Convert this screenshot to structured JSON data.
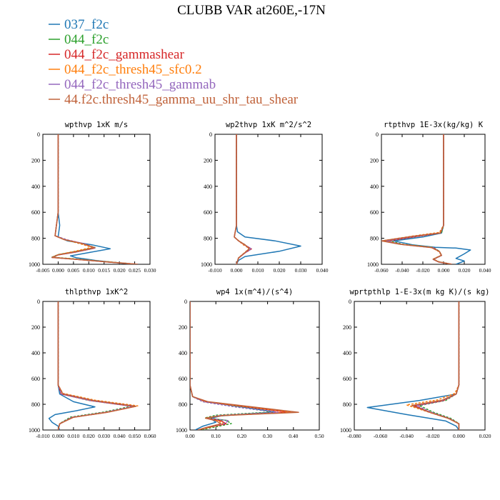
{
  "page": {
    "title": "CLUBB VAR at260E,-17N"
  },
  "legend": [
    {
      "label": "037_f2c",
      "color": "#1f77b4"
    },
    {
      "label": "044_f2c",
      "color": "#2ca02c"
    },
    {
      "label": "044_f2c_gammashear",
      "color": "#d62728"
    },
    {
      "label": "044_f2c_thresh45_sfc0.2",
      "color": "#ff7f0e"
    },
    {
      "label": "044_f2c_thresh45_gammab",
      "color": "#9467bd"
    },
    {
      "label": "44.f2c.thresh45_gamma_uu_shr_tau_shear",
      "color": "#c0623a"
    }
  ],
  "chart_data": [
    {
      "type": "line",
      "title": "wpthvp  1xK m/s",
      "xlim": [
        -0.005,
        0.03
      ],
      "ylim": [
        1000,
        0
      ],
      "xticks": [
        "-0.005",
        "0.000",
        "0.005",
        "0.010",
        "0.015",
        "0.020",
        "0.025",
        "0.030"
      ],
      "yticks": [
        "0",
        "200",
        "400",
        "600",
        "800",
        "1000"
      ],
      "series": [
        {
          "x": [
            0.0,
            0.0,
            0.0005,
            0.0,
            0.003,
            0.011,
            0.017,
            0.01,
            0.004,
            0.006,
            0.012,
            0.02,
            0.025
          ],
          "y": [
            0,
            600,
            700,
            790,
            820,
            850,
            880,
            910,
            935,
            950,
            970,
            990,
            1000
          ]
        },
        {
          "x": [
            0.0,
            0.0,
            -0.001,
            0.002,
            0.007,
            0.012,
            0.006,
            0.0,
            -0.002,
            0.006,
            0.016,
            0.026
          ],
          "y": [
            0,
            600,
            780,
            810,
            840,
            870,
            900,
            925,
            945,
            960,
            980,
            1000
          ]
        },
        {
          "x": [
            0.0,
            0.0,
            -0.001,
            0.002,
            0.008,
            0.012,
            0.006,
            0.0,
            -0.002,
            0.006,
            0.016,
            0.026
          ],
          "y": [
            0,
            600,
            780,
            810,
            840,
            875,
            905,
            928,
            948,
            962,
            982,
            1000
          ]
        },
        {
          "x": [
            0.0,
            0.0,
            -0.001,
            0.002,
            0.007,
            0.011,
            0.005,
            0.0,
            -0.002,
            0.006,
            0.016,
            0.026
          ],
          "y": [
            0,
            600,
            780,
            810,
            840,
            870,
            902,
            926,
            946,
            961,
            981,
            1000
          ]
        },
        {
          "x": [
            0.0,
            0.0,
            -0.001,
            0.003,
            0.009,
            0.012,
            0.006,
            0.0,
            -0.002,
            0.006,
            0.016,
            0.026
          ],
          "y": [
            0,
            600,
            780,
            812,
            845,
            875,
            905,
            928,
            948,
            962,
            982,
            1000
          ]
        },
        {
          "x": [
            0.0,
            0.0,
            -0.001,
            0.002,
            0.008,
            0.012,
            0.006,
            0.0,
            -0.002,
            0.006,
            0.016,
            0.026
          ],
          "y": [
            0,
            600,
            780,
            810,
            842,
            872,
            903,
            927,
            947,
            962,
            982,
            1000
          ]
        }
      ]
    },
    {
      "type": "line",
      "title": "wp2thvp  1xK m^2/s^2",
      "xlim": [
        -0.01,
        0.04
      ],
      "ylim": [
        1000,
        0
      ],
      "xticks": [
        "-0.010",
        "0.000",
        "0.010",
        "0.020",
        "0.030",
        "0.040"
      ],
      "yticks": [
        "0",
        "200",
        "400",
        "600",
        "800",
        "1000"
      ],
      "series": [
        {
          "x": [
            0.0,
            0.0,
            0.0005,
            0.004,
            0.018,
            0.03,
            0.02,
            0.004,
            0.001,
            0.0
          ],
          "y": [
            0,
            700,
            750,
            790,
            820,
            860,
            900,
            940,
            970,
            1000
          ]
        },
        {
          "x": [
            0.0,
            0.0,
            -0.001,
            0.001,
            0.004,
            0.006,
            0.004,
            0.001,
            0.0
          ],
          "y": [
            0,
            700,
            790,
            820,
            850,
            880,
            910,
            950,
            1000
          ]
        },
        {
          "x": [
            0.0,
            0.0,
            -0.001,
            0.001,
            0.004,
            0.007,
            0.004,
            0.001,
            0.0
          ],
          "y": [
            0,
            700,
            790,
            820,
            852,
            882,
            912,
            952,
            1000
          ]
        },
        {
          "x": [
            0.0,
            0.0,
            -0.001,
            0.001,
            0.003,
            0.006,
            0.004,
            0.001,
            0.0
          ],
          "y": [
            0,
            700,
            790,
            818,
            848,
            878,
            908,
            950,
            1000
          ]
        },
        {
          "x": [
            0.0,
            0.0,
            -0.001,
            0.001,
            0.004,
            0.007,
            0.004,
            0.001,
            0.0
          ],
          "y": [
            0,
            700,
            790,
            820,
            852,
            882,
            912,
            952,
            1000
          ]
        },
        {
          "x": [
            0.0,
            0.0,
            -0.001,
            0.001,
            0.004,
            0.006,
            0.004,
            0.001,
            0.0
          ],
          "y": [
            0,
            700,
            790,
            820,
            850,
            880,
            910,
            950,
            1000
          ]
        }
      ]
    },
    {
      "type": "line",
      "title": "rtpthvp  1E-3x(kg/kg) K",
      "xlim": [
        -0.06,
        0.04
      ],
      "ylim": [
        1000,
        0
      ],
      "xticks": [
        "-0.060",
        "-0.040",
        "-0.020",
        "0.000",
        "0.020",
        "0.040"
      ],
      "yticks": [
        "0",
        "200",
        "400",
        "600",
        "800",
        "1000"
      ],
      "series": [
        {
          "x": [
            0.0,
            0.0,
            -0.002,
            -0.02,
            -0.048,
            -0.03,
            -0.008,
            0.012,
            0.026,
            0.02,
            0.012,
            0.02,
            0.012
          ],
          "y": [
            0,
            700,
            760,
            790,
            820,
            850,
            870,
            875,
            890,
            920,
            955,
            975,
            1000
          ]
        },
        {
          "x": [
            0.0,
            0.0,
            -0.002,
            -0.025,
            -0.052,
            -0.04,
            -0.01,
            -0.004,
            -0.002,
            -0.01,
            -0.005,
            0.008
          ],
          "y": [
            0,
            700,
            760,
            785,
            820,
            845,
            870,
            900,
            930,
            960,
            980,
            1000
          ]
        },
        {
          "x": [
            0.0,
            0.0,
            -0.003,
            -0.027,
            -0.055,
            -0.04,
            -0.01,
            -0.004,
            -0.002,
            -0.01,
            -0.005,
            0.008
          ],
          "y": [
            0,
            700,
            760,
            787,
            822,
            847,
            872,
            902,
            932,
            962,
            982,
            1000
          ]
        },
        {
          "x": [
            0.0,
            0.0,
            -0.004,
            -0.03,
            -0.058,
            -0.042,
            -0.012,
            -0.005,
            -0.002,
            -0.01,
            -0.005,
            0.008
          ],
          "y": [
            0,
            700,
            755,
            783,
            818,
            845,
            870,
            900,
            930,
            960,
            980,
            1000
          ]
        },
        {
          "x": [
            0.0,
            0.0,
            -0.003,
            -0.028,
            -0.055,
            -0.04,
            -0.01,
            -0.004,
            -0.002,
            -0.01,
            -0.005,
            0.008
          ],
          "y": [
            0,
            700,
            760,
            786,
            822,
            848,
            873,
            903,
            933,
            963,
            982,
            1000
          ]
        },
        {
          "x": [
            0.0,
            0.0,
            -0.003,
            -0.03,
            -0.06,
            -0.042,
            -0.012,
            -0.004,
            -0.002,
            -0.01,
            -0.005,
            0.008
          ],
          "y": [
            0,
            700,
            758,
            785,
            820,
            846,
            871,
            901,
            931,
            961,
            981,
            1000
          ]
        }
      ]
    },
    {
      "type": "line",
      "title": "thlpthvp  1xK^2",
      "xlim": [
        -0.01,
        0.06
      ],
      "ylim": [
        1000,
        0
      ],
      "xticks": [
        "-0.010",
        "0.000",
        "0.010",
        "0.020",
        "0.030",
        "0.040",
        "0.050",
        "0.060"
      ],
      "yticks": [
        "0",
        "200",
        "400",
        "600",
        "800",
        "1000"
      ],
      "series": [
        {
          "x": [
            0.0,
            0.0,
            0.001,
            0.01,
            0.024,
            0.012,
            -0.002,
            -0.006,
            -0.004,
            0.0,
            0.001
          ],
          "y": [
            0,
            650,
            720,
            780,
            820,
            850,
            880,
            910,
            940,
            970,
            1000
          ]
        },
        {
          "x": [
            0.0,
            0.0,
            0.002,
            0.02,
            0.048,
            0.03,
            0.008,
            0.001,
            0.0
          ],
          "y": [
            0,
            650,
            720,
            770,
            815,
            860,
            900,
            950,
            1000
          ]
        },
        {
          "x": [
            0.0,
            0.0,
            0.002,
            0.022,
            0.05,
            0.032,
            0.009,
            0.001,
            0.0
          ],
          "y": [
            0,
            650,
            720,
            772,
            818,
            862,
            902,
            952,
            1000
          ]
        },
        {
          "x": [
            0.0,
            0.0,
            0.003,
            0.024,
            0.052,
            0.034,
            0.01,
            0.001,
            0.0
          ],
          "y": [
            0,
            650,
            715,
            768,
            812,
            858,
            900,
            950,
            1000
          ]
        },
        {
          "x": [
            0.0,
            0.0,
            0.002,
            0.021,
            0.049,
            0.031,
            0.009,
            0.001,
            0.0
          ],
          "y": [
            0,
            650,
            720,
            771,
            816,
            861,
            901,
            951,
            1000
          ]
        },
        {
          "x": [
            0.0,
            0.0,
            0.003,
            0.023,
            0.051,
            0.033,
            0.01,
            0.001,
            0.0
          ],
          "y": [
            0,
            650,
            718,
            770,
            815,
            860,
            901,
            951,
            1000
          ]
        }
      ]
    },
    {
      "type": "line",
      "title": "wp4  1x(m^4)/(s^4)",
      "xlim": [
        0.0,
        0.5
      ],
      "ylim": [
        1000,
        0
      ],
      "xticks": [
        "0.00",
        "0.10",
        "0.20",
        "0.30",
        "0.40",
        "0.50"
      ],
      "yticks": [
        "0",
        "200",
        "400",
        "600",
        "800",
        "1000"
      ],
      "series": [
        {
          "x": [
            0.0,
            0.0,
            0.01,
            0.06,
            0.2,
            0.33,
            0.12,
            0.08,
            0.1,
            0.05,
            0.02
          ],
          "y": [
            0,
            650,
            740,
            780,
            820,
            860,
            890,
            910,
            940,
            970,
            1000
          ]
        },
        {
          "x": [
            0.0,
            0.0,
            0.01,
            0.05,
            0.18,
            0.32,
            0.1,
            0.06,
            0.14,
            0.16,
            0.1,
            0.04
          ],
          "y": [
            0,
            650,
            740,
            780,
            820,
            860,
            885,
            905,
            925,
            950,
            975,
            1000
          ]
        },
        {
          "x": [
            0.0,
            0.0,
            0.01,
            0.06,
            0.22,
            0.38,
            0.12,
            0.06,
            0.12,
            0.14,
            0.08,
            0.03
          ],
          "y": [
            0,
            650,
            740,
            780,
            820,
            862,
            888,
            908,
            928,
            952,
            976,
            1000
          ]
        },
        {
          "x": [
            0.0,
            0.0,
            0.01,
            0.06,
            0.22,
            0.4,
            0.12,
            0.06,
            0.11,
            0.13,
            0.08,
            0.03
          ],
          "y": [
            0,
            650,
            740,
            780,
            820,
            862,
            888,
            908,
            928,
            952,
            976,
            1000
          ]
        },
        {
          "x": [
            0.0,
            0.0,
            0.01,
            0.05,
            0.18,
            0.34,
            0.11,
            0.07,
            0.15,
            0.13,
            0.07,
            0.03
          ],
          "y": [
            0,
            650,
            740,
            780,
            822,
            862,
            887,
            907,
            927,
            952,
            976,
            1000
          ]
        },
        {
          "x": [
            0.0,
            0.0,
            0.01,
            0.07,
            0.25,
            0.42,
            0.13,
            0.06,
            0.1,
            0.12,
            0.07,
            0.03
          ],
          "y": [
            0,
            650,
            740,
            780,
            822,
            862,
            888,
            908,
            928,
            952,
            976,
            1000
          ]
        }
      ]
    },
    {
      "type": "line",
      "title": "wprtpthlp  1-E-3x(m kg K)/(s kg)",
      "xlim": [
        -0.08,
        0.02
      ],
      "ylim": [
        1000,
        0
      ],
      "xticks": [
        "-0.080",
        "-0.060",
        "-0.040",
        "-0.020",
        "0.000",
        "0.020"
      ],
      "yticks": [
        "0",
        "200",
        "400",
        "600",
        "800",
        "1000"
      ],
      "series": [
        {
          "x": [
            0.0,
            0.0,
            -0.002,
            -0.03,
            -0.07,
            -0.04,
            -0.01,
            -0.002,
            0.0
          ],
          "y": [
            0,
            650,
            720,
            770,
            825,
            880,
            930,
            970,
            1000
          ]
        },
        {
          "x": [
            0.0,
            0.0,
            -0.002,
            -0.01,
            -0.03,
            -0.02,
            -0.006,
            0.0,
            0.0
          ],
          "y": [
            0,
            650,
            720,
            770,
            810,
            860,
            910,
            950,
            1000
          ]
        },
        {
          "x": [
            0.0,
            0.0,
            -0.002,
            -0.012,
            -0.034,
            -0.022,
            -0.007,
            0.0,
            0.0
          ],
          "y": [
            0,
            650,
            720,
            772,
            812,
            862,
            912,
            952,
            1000
          ]
        },
        {
          "x": [
            0.0,
            0.0,
            -0.003,
            -0.016,
            -0.04,
            -0.024,
            -0.008,
            0.0,
            0.0
          ],
          "y": [
            0,
            650,
            715,
            765,
            805,
            858,
            910,
            952,
            1000
          ]
        },
        {
          "x": [
            0.0,
            0.0,
            -0.002,
            -0.012,
            -0.032,
            -0.021,
            -0.007,
            0.0,
            0.0
          ],
          "y": [
            0,
            650,
            720,
            771,
            811,
            861,
            911,
            951,
            1000
          ]
        },
        {
          "x": [
            0.0,
            0.0,
            -0.002,
            -0.013,
            -0.036,
            -0.023,
            -0.008,
            0.0,
            0.0
          ],
          "y": [
            0,
            650,
            719,
            769,
            810,
            860,
            910,
            951,
            1000
          ]
        }
      ]
    }
  ]
}
